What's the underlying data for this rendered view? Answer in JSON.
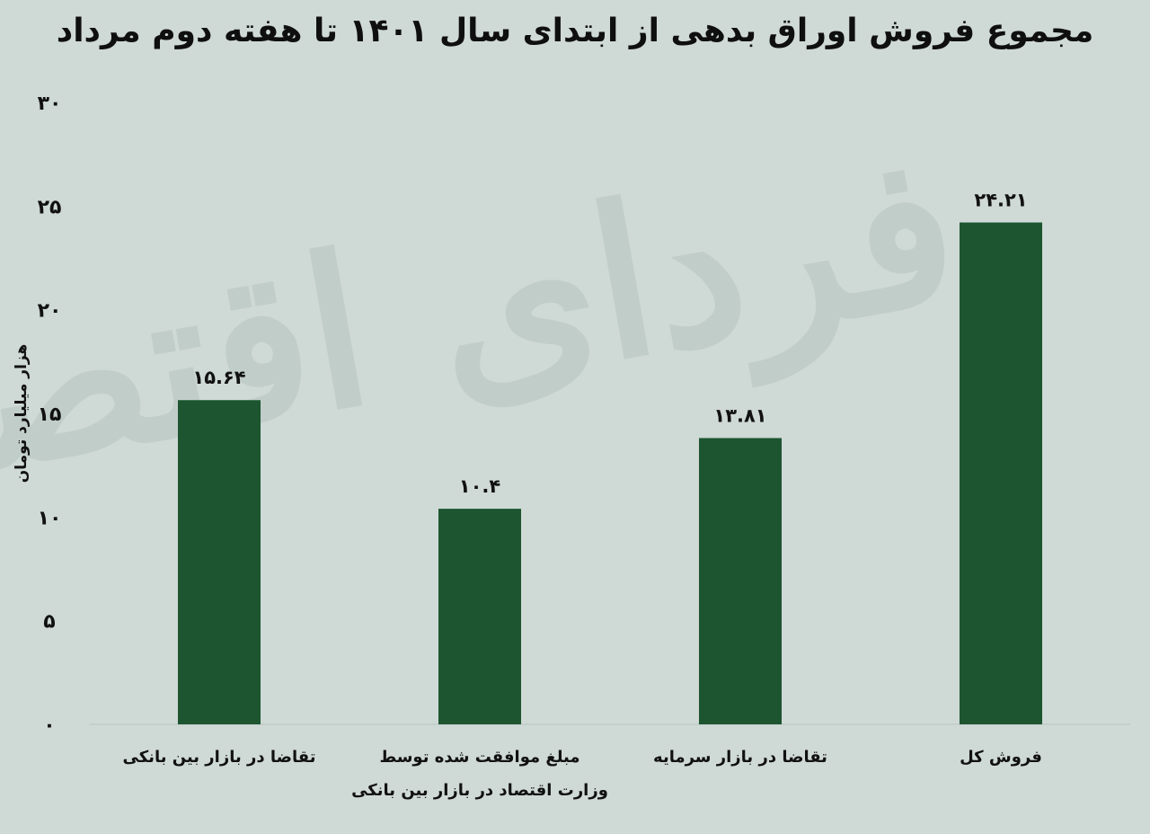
{
  "chart_data": {
    "type": "bar",
    "title": "مجموع فروش اوراق بدهی از ابتدای سال ۱۴۰۱ تا هفته دوم مرداد",
    "ylabel": "هزار میلیارد تومان",
    "xlabel": "",
    "ylim": [
      0,
      30
    ],
    "yticks": [
      "۰",
      "۵",
      "۱۰",
      "۱۵",
      "۲۰",
      "۲۵",
      "۳۰"
    ],
    "ytick_values": [
      0,
      5,
      10,
      15,
      20,
      25,
      30
    ],
    "grid": false,
    "bar_color": "#1c5530",
    "watermark": "فردای اقتصاد",
    "categories": [
      [
        "تقاضا در بازار بین بانکی"
      ],
      [
        "مبلغ موافقت شده توسط",
        "وزارت اقتصاد در بازار بین بانکی"
      ],
      [
        "تقاضا در بازار سرمایه"
      ],
      [
        "فروش کل"
      ]
    ],
    "values": [
      15.64,
      10.4,
      13.81,
      24.21
    ],
    "value_labels": [
      "۱۵.۶۴",
      "۱۰.۴",
      "۱۳.۸۱",
      "۲۴.۲۱"
    ]
  }
}
